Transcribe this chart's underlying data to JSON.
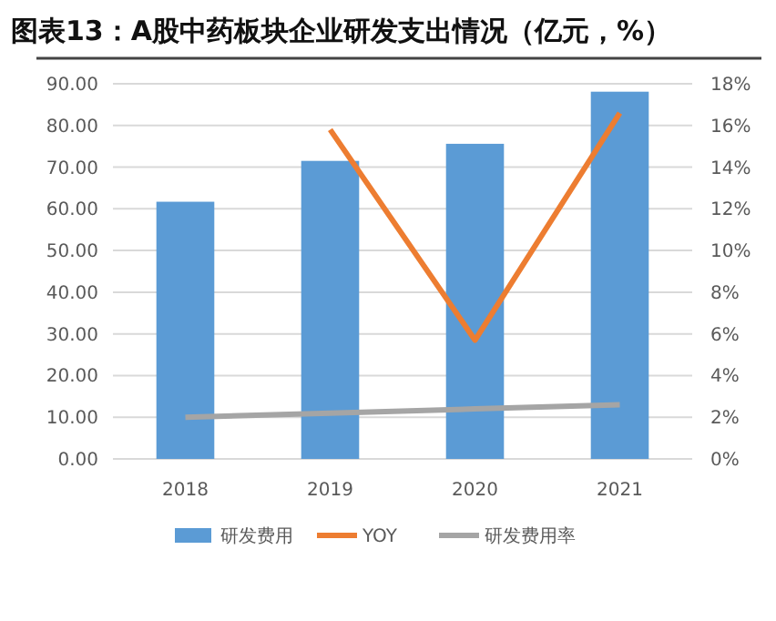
{
  "chart_data": {
    "type": "bar",
    "title": "图表13：A股中药板块企业研发支出情况（亿元，%）",
    "categories": [
      "2018",
      "2019",
      "2020",
      "2021"
    ],
    "series": [
      {
        "name": "研发费用",
        "color": "#5b9bd5",
        "values": [
          61.7,
          71.5,
          75.6,
          88.1
        ]
      },
      {
        "name": "YOY",
        "type": "line",
        "axis": "y2",
        "color": "#ed7d31",
        "values": [
          null,
          15.8,
          5.7,
          16.6
        ]
      },
      {
        "name": "研发费用率",
        "type": "line",
        "axis": "y2",
        "color": "#a5a5a5",
        "values": [
          2.0,
          2.2,
          2.4,
          2.6
        ]
      }
    ],
    "ylim": [
      0,
      90
    ],
    "yticks": [
      {
        "value": 0,
        "label": "0.00"
      },
      {
        "value": 10,
        "label": "10.00"
      },
      {
        "value": 20,
        "label": "20.00"
      },
      {
        "value": 30,
        "label": "30.00"
      },
      {
        "value": 40,
        "label": "40.00"
      },
      {
        "value": 50,
        "label": "50.00"
      },
      {
        "value": 60,
        "label": "60.00"
      },
      {
        "value": 70,
        "label": "70.00"
      },
      {
        "value": 80,
        "label": "80.00"
      },
      {
        "value": 90,
        "label": "90.00"
      }
    ],
    "y2lim": [
      0,
      18
    ],
    "y2ticks": [
      {
        "value": 0,
        "label": "0%"
      },
      {
        "value": 2,
        "label": "2%"
      },
      {
        "value": 4,
        "label": "4%"
      },
      {
        "value": 6,
        "label": "6%"
      },
      {
        "value": 8,
        "label": "8%"
      },
      {
        "value": 10,
        "label": "10%"
      },
      {
        "value": 12,
        "label": "12%"
      },
      {
        "value": 14,
        "label": "14%"
      },
      {
        "value": 16,
        "label": "16%"
      },
      {
        "value": 18,
        "label": "18%"
      }
    ],
    "grid": "y",
    "legend": "bottom",
    "marker": "none",
    "line_style": "solid"
  }
}
